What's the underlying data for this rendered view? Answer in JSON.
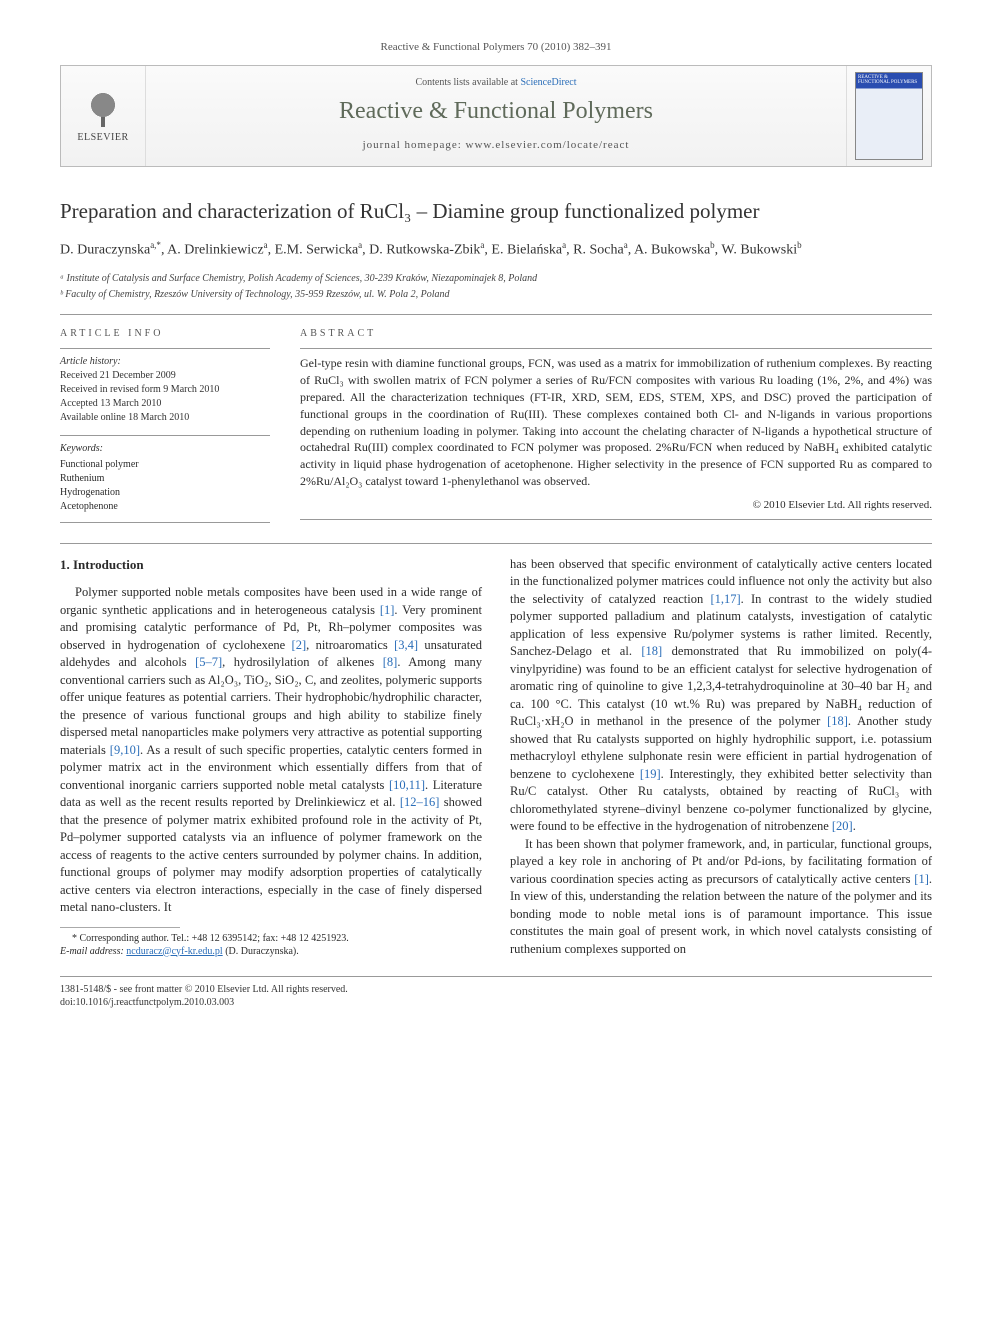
{
  "citation": "Reactive & Functional Polymers 70 (2010) 382–391",
  "header": {
    "publisher_name": "ELSEVIER",
    "contents_prefix": "Contents lists available at ",
    "contents_link": "ScienceDirect",
    "journal_name": "Reactive & Functional Polymers",
    "homepage": "journal homepage: www.elsevier.com/locate/react",
    "cover_label_top": "REACTIVE & FUNCTIONAL POLYMERS"
  },
  "title": "Preparation and characterization of RuCl₃ – Diamine group functionalized polymer",
  "authors_html": "D. Duraczynska<sup>a,*</sup>, A. Drelinkiewicz<sup>a</sup>, E.M. Serwicka<sup>a</sup>, D. Rutkowska-Zbik<sup>a</sup>, E. Bielańska<sup>a</sup>, R. Socha<sup>a</sup>, A. Bukowska<sup>b</sup>, W. Bukowski<sup>b</sup>",
  "affiliations": [
    "ᵃ Institute of Catalysis and Surface Chemistry, Polish Academy of Sciences, 30-239 Kraków, Niezapominajek 8, Poland",
    "ᵇ Faculty of Chemistry, Rzeszów University of Technology, 35-959 Rzeszów, ul. W. Pola 2, Poland"
  ],
  "article_info_label": "ARTICLE INFO",
  "abstract_label": "ABSTRACT",
  "history": {
    "title": "Article history:",
    "received": "Received 21 December 2009",
    "revised": "Received in revised form 9 March 2010",
    "accepted": "Accepted 13 March 2010",
    "online": "Available online 18 March 2010"
  },
  "keywords": {
    "title": "Keywords:",
    "items": [
      "Functional polymer",
      "Ruthenium",
      "Hydrogenation",
      "Acetophenone"
    ]
  },
  "abstract": "Gel-type resin with diamine functional groups, FCN, was used as a matrix for immobilization of ruthenium complexes. By reacting of RuCl₃ with swollen matrix of FCN polymer a series of Ru/FCN composites with various Ru loading (1%, 2%, and 4%) was prepared. All the characterization techniques (FT-IR, XRD, SEM, EDS, STEM, XPS, and DSC) proved the participation of functional groups in the coordination of Ru(III). These complexes contained both Cl- and N-ligands in various proportions depending on ruthenium loading in polymer. Taking into account the chelating character of N-ligands a hypothetical structure of octahedral Ru(III) complex coordinated to FCN polymer was proposed. 2%Ru/FCN when reduced by NaBH₄ exhibited catalytic activity in liquid phase hydrogenation of acetophenone. Higher selectivity in the presence of FCN supported Ru as compared to 2%Ru/Al₂O₃ catalyst toward 1-phenylethanol was observed.",
  "copyright": "© 2010 Elsevier Ltd. All rights reserved.",
  "section1_title": "1. Introduction",
  "intro_para1": "Polymer supported noble metals composites have been used in a wide range of organic synthetic applications and in heterogeneous catalysis [1]. Very prominent and promising catalytic performance of Pd, Pt, Rh–polymer composites was observed in hydrogenation of cyclohexene [2], nitroaromatics [3,4] unsaturated aldehydes and alcohols [5–7], hydrosilylation of alkenes [8]. Among many conventional carriers such as Al₂O₃, TiO₂, SiO₂, C, and zeolites, polymeric supports offer unique features as potential carriers. Their hydrophobic/hydrophilic character, the presence of various functional groups and high ability to stabilize finely dispersed metal nanoparticles make polymers very attractive as potential supporting materials [9,10]. As a result of such specific properties, catalytic centers formed in polymer matrix act in the environment which essentially differs from that of conventional inorganic carriers supported noble metal catalysts [10,11]. Literature data as well as the recent results reported by Drelinkiewicz et al. [12–16] showed that the presence of polymer matrix exhibited profound role in the activity of Pt, Pd–polymer supported catalysts via an influence of polymer framework on the access of reagents to the active centers surrounded by polymer chains. In addition, functional groups of polymer may modify adsorption properties of catalytically active centers via electron interactions, especially in the case of finely dispersed metal nano-clusters. It",
  "intro_para2": "has been observed that specific environment of catalytically active centers located in the functionalized polymer matrices could influence not only the activity but also the selectivity of catalyzed reaction [1,17]. In contrast to the widely studied polymer supported palladium and platinum catalysts, investigation of catalytic application of less expensive Ru/polymer systems is rather limited. Recently, Sanchez-Delago et al. [18] demonstrated that Ru immobilized on poly(4-vinylpyridine) was found to be an efficient catalyst for selective hydrogenation of aromatic ring of quinoline to give 1,2,3,4-tetrahydroquinoline at 30–40 bar H₂ and ca. 100 °C. This catalyst (10 wt.% Ru) was prepared by NaBH₄ reduction of RuCl₃·xH₂O in methanol in the presence of the polymer [18]. Another study showed that Ru catalysts supported on highly hydrophilic support, i.e. potassium methacryloyl ethylene sulphonate resin were efficient in partial hydrogenation of benzene to cyclohexene [19]. Interestingly, they exhibited better selectivity than Ru/C catalyst. Other Ru catalysts, obtained by reacting of RuCl₃ with chloromethylated styrene–divinyl benzene co-polymer functionalized by glycine, were found to be effective in the hydrogenation of nitrobenzene [20].",
  "intro_para3": "It has been shown that polymer framework, and, in particular, functional groups, played a key role in anchoring of Pt and/or Pd-ions, by facilitating formation of various coordination species acting as precursors of catalytically active centers [1]. In view of this, understanding the relation between the nature of the polymer and its bonding mode to noble metal ions is of paramount importance. This issue constitutes the main goal of present work, in which novel catalysts consisting of ruthenium complexes supported on",
  "corresponding": {
    "note": "* Corresponding author. Tel.: +48 12 6395142; fax: +48 12 4251923.",
    "email_label": "E-mail address:",
    "email": "ncduracz@cyf-kr.edu.pl",
    "email_name": "(D. Duraczynska)."
  },
  "footer": {
    "issn": "1381-5148/$ - see front matter © 2010 Elsevier Ltd. All rights reserved.",
    "doi": "doi:10.1016/j.reactfunctpolym.2010.03.003"
  },
  "colors": {
    "link": "#2a6db8",
    "journal_title": "#5f6a5a",
    "border": "#999999",
    "text": "#2a2a2a"
  }
}
